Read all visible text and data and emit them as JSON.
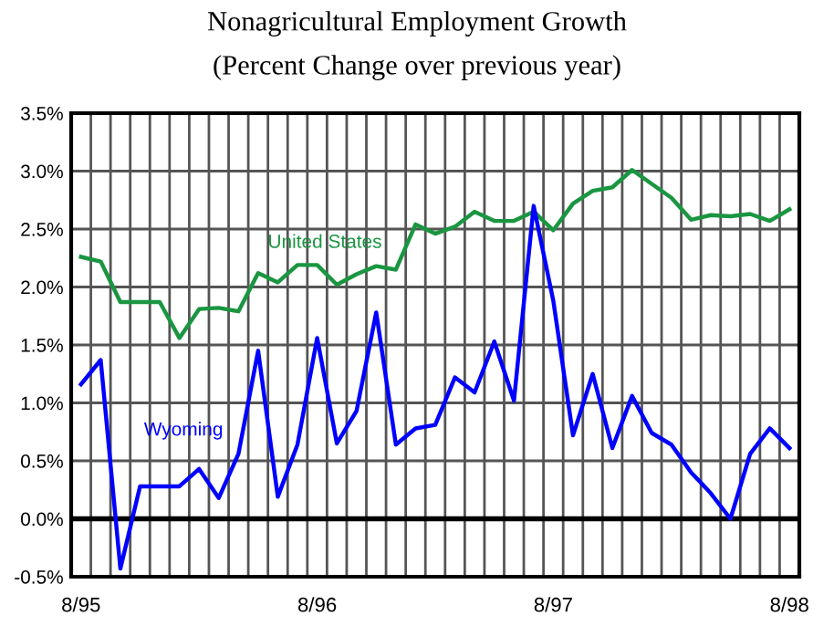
{
  "chart_data": {
    "type": "line",
    "title": "Nonagricultural Employment Growth",
    "subtitle": "(Percent Change over previous year)",
    "categories": [
      "8/95",
      null,
      null,
      null,
      null,
      null,
      null,
      null,
      null,
      null,
      null,
      null,
      "8/96",
      null,
      null,
      null,
      null,
      null,
      null,
      null,
      null,
      null,
      null,
      null,
      "8/97",
      null,
      null,
      null,
      null,
      null,
      null,
      null,
      null,
      null,
      null,
      null,
      "8/98"
    ],
    "series": [
      {
        "name": "United States",
        "color": "#1a9641",
        "values": [
          2.26,
          2.22,
          1.87,
          1.87,
          1.87,
          1.56,
          1.81,
          1.82,
          1.79,
          2.12,
          2.04,
          2.19,
          2.19,
          2.02,
          2.11,
          2.18,
          2.15,
          2.54,
          2.46,
          2.52,
          2.65,
          2.57,
          2.57,
          2.65,
          2.49,
          2.72,
          2.83,
          2.86,
          3.01,
          2.89,
          2.77,
          2.58,
          2.62,
          2.61,
          2.63,
          2.57,
          2.67
        ]
      },
      {
        "name": "Wyoming",
        "color": "#0000ff",
        "values": [
          1.16,
          1.37,
          -0.43,
          0.28,
          0.28,
          0.28,
          0.43,
          0.18,
          0.56,
          1.45,
          0.19,
          0.64,
          1.56,
          0.65,
          0.93,
          1.78,
          0.64,
          0.78,
          0.81,
          1.22,
          1.09,
          1.53,
          1.02,
          2.7,
          1.88,
          0.72,
          1.25,
          0.61,
          1.06,
          0.74,
          0.64,
          0.4,
          0.22,
          0.0,
          0.56,
          0.78,
          0.61
        ]
      }
    ],
    "ylim": [
      -0.5,
      3.5
    ],
    "yticks": [
      {
        "value": -0.5,
        "label": "-0.5%"
      },
      {
        "value": 0,
        "label": "0.0%"
      },
      {
        "value": 0.5,
        "label": "0.5%"
      },
      {
        "value": 1,
        "label": "1.0%"
      },
      {
        "value": 1.5,
        "label": "1.5%"
      },
      {
        "value": 2,
        "label": "2.0%"
      },
      {
        "value": 2.5,
        "label": "2.5%"
      },
      {
        "value": 3,
        "label": "3.0%"
      },
      {
        "value": 3.5,
        "label": "3.5%"
      }
    ],
    "ref_lines": [
      {
        "axis": "y",
        "value": 0,
        "color": "#000000"
      }
    ],
    "grid": true,
    "legend": false,
    "marker": "none",
    "line_style": "solid"
  }
}
